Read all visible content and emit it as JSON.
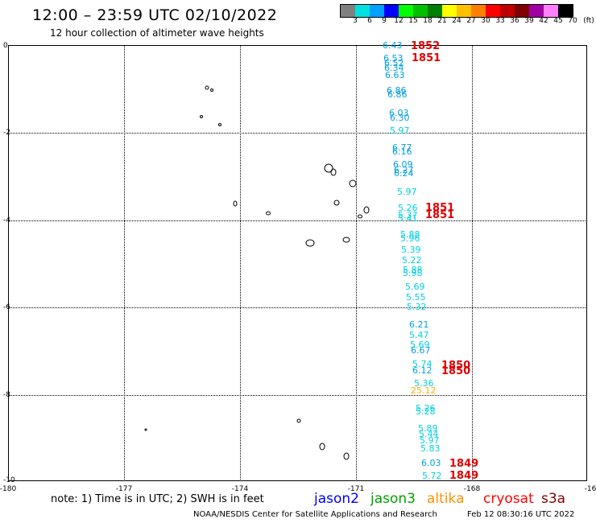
{
  "header": {
    "title": "12:00 – 23:59 UTC 02/10/2022",
    "subtitle": "12 hour collection of altimeter wave heights"
  },
  "legend": {
    "labels": [
      "3",
      "6",
      "9",
      "12",
      "15",
      "18",
      "21",
      "24",
      "27",
      "30",
      "33",
      "36",
      "39",
      "42",
      "45",
      "70",
      "(ft)"
    ],
    "colors": [
      "#808080",
      "#00e0e0",
      "#00a0ff",
      "#0000ff",
      "#00ff00",
      "#00c000",
      "#008000",
      "#ffff00",
      "#ffc000",
      "#ff8000",
      "#ff0000",
      "#c00000",
      "#800000",
      "#a000a0",
      "#ff80ff",
      "#000000"
    ]
  },
  "axes": {
    "lat_labels": [
      "0",
      "-2",
      "-4",
      "-6",
      "-8",
      "-10"
    ],
    "lon_labels": [
      "-180",
      "-177",
      "-174",
      "-171",
      "-168",
      "-16"
    ]
  },
  "observations": [
    {
      "v": "6.43",
      "c": "#00a0e0"
    },
    {
      "v": "6.53",
      "c": "#00a0e0"
    },
    {
      "v": "6.52",
      "c": "#00a0e0"
    },
    {
      "v": "6.34",
      "c": "#00a0e0"
    },
    {
      "v": "6.63",
      "c": "#00a0e0"
    },
    {
      "v": "6.86",
      "c": "#00a0e0"
    },
    {
      "v": "6.86",
      "c": "#00a0e0"
    },
    {
      "v": "6.03",
      "c": "#00a0e0"
    },
    {
      "v": "6.30",
      "c": "#00a0e0"
    },
    {
      "v": "5.97",
      "c": "#00d0e0"
    },
    {
      "v": "6.77",
      "c": "#00a0e0"
    },
    {
      "v": "6.16",
      "c": "#00a0e0"
    },
    {
      "v": "6.09",
      "c": "#00a0e0"
    },
    {
      "v": "6.27",
      "c": "#00a0e0"
    },
    {
      "v": "6.24",
      "c": "#00a0e0"
    },
    {
      "v": "5.97",
      "c": "#00d0e0"
    },
    {
      "v": "5.26",
      "c": "#00d0e0"
    },
    {
      "v": "5.37",
      "c": "#00d0e0"
    },
    {
      "v": "5.41",
      "c": "#00d0e0"
    },
    {
      "v": "5.88",
      "c": "#00d0e0"
    },
    {
      "v": "5.96",
      "c": "#00d0e0"
    },
    {
      "v": "5.39",
      "c": "#00d0e0"
    },
    {
      "v": "5.22",
      "c": "#00d0e0"
    },
    {
      "v": "5.88",
      "c": "#00d0e0"
    },
    {
      "v": "5.98",
      "c": "#00d0e0"
    },
    {
      "v": "5.69",
      "c": "#00d0e0"
    },
    {
      "v": "5.55",
      "c": "#00d0e0"
    },
    {
      "v": "5.32",
      "c": "#00d0e0"
    },
    {
      "v": "6.21",
      "c": "#00a0e0"
    },
    {
      "v": "5.47",
      "c": "#00d0e0"
    },
    {
      "v": "5.69",
      "c": "#00d0e0"
    },
    {
      "v": "6.67",
      "c": "#00a0e0"
    },
    {
      "v": "5.74",
      "c": "#00d0e0"
    },
    {
      "v": "6.12",
      "c": "#00a0e0"
    },
    {
      "v": "5.36",
      "c": "#00d0e0"
    },
    {
      "v": "25.12",
      "c": "#ffb000"
    },
    {
      "v": "5.26",
      "c": "#00d0e0"
    },
    {
      "v": "5.28",
      "c": "#00d0e0"
    },
    {
      "v": "5.89",
      "c": "#00d0e0"
    },
    {
      "v": "5.44",
      "c": "#00d0e0"
    },
    {
      "v": "5.97",
      "c": "#00d0e0"
    },
    {
      "v": "5.83",
      "c": "#00d0e0"
    },
    {
      "v": "6.03",
      "c": "#00a0e0"
    },
    {
      "v": "5.72",
      "c": "#00d0e0"
    }
  ],
  "cycle_labels": [
    "1852",
    "1851",
    "1851",
    "1851",
    "1850",
    "1850",
    "1849",
    "1849"
  ],
  "footer": {
    "note": "note:  1) Time is in UTC;  2) SWH is in feet",
    "satellites": [
      {
        "name": "jason2",
        "color": "#0000ff"
      },
      {
        "name": "jason3",
        "color": "#00a000"
      },
      {
        "name": "altika",
        "color": "#ff9000"
      },
      {
        "name": "cryosat",
        "color": "#ff0000"
      },
      {
        "name": "s3a",
        "color": "#800000"
      }
    ],
    "credit": "NOAA/NESDIS Center for Satellite Applications and Research",
    "timestamp": "Feb 12 08:30:16 UTC 2022"
  }
}
